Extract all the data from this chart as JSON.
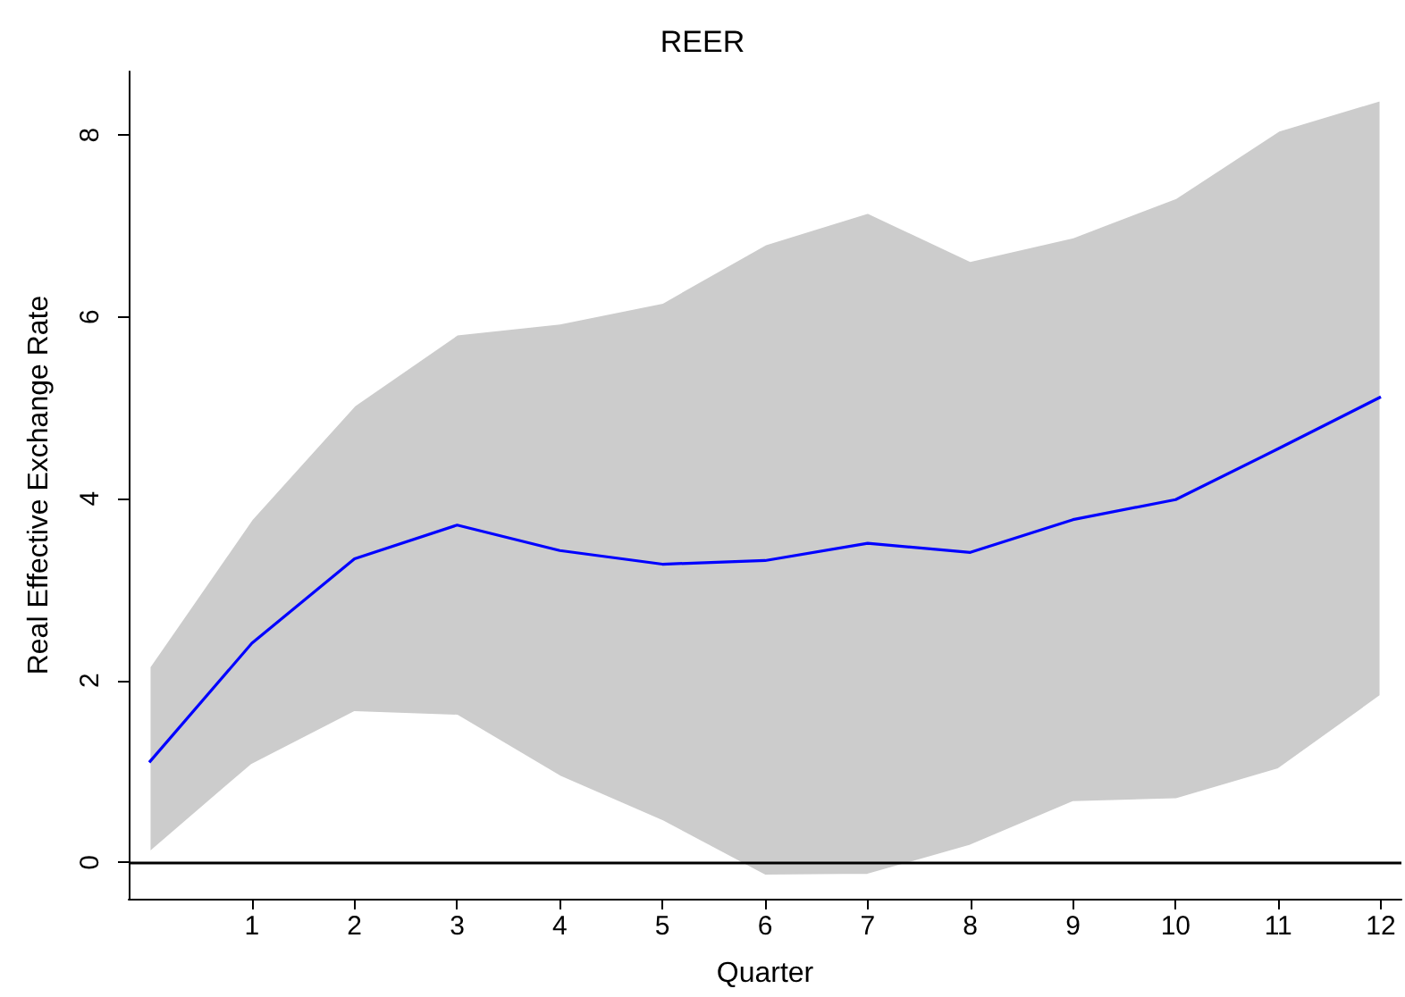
{
  "chart_data": {
    "type": "line",
    "title": "REER",
    "xlabel": "Quarter",
    "ylabel": "Real Effective Exchange Rate",
    "x": [
      0,
      1,
      2,
      3,
      4,
      5,
      6,
      7,
      8,
      9,
      10,
      11,
      12
    ],
    "series": [
      {
        "color": "#0000ff",
        "values": [
          1.1,
          2.41,
          3.34,
          3.71,
          3.43,
          3.28,
          3.32,
          3.51,
          3.41,
          3.77,
          3.99,
          4.55,
          5.12
        ],
        "lower": [
          0.1,
          1.07,
          1.65,
          1.61,
          0.94,
          0.45,
          -0.15,
          -0.14,
          0.18,
          0.66,
          0.69,
          1.02,
          1.83
        ],
        "upper": [
          2.15,
          3.78,
          5.03,
          5.81,
          5.93,
          6.16,
          6.8,
          7.15,
          6.62,
          6.88,
          7.31,
          8.05,
          8.39
        ]
      }
    ],
    "xlim": [
      -0.2,
      12.2
    ],
    "xticks": [
      1,
      2,
      3,
      4,
      5,
      6,
      7,
      8,
      9,
      10,
      11,
      12
    ],
    "ylim": [
      -0.4,
      8.7
    ],
    "yticks": [
      0,
      2,
      4,
      6,
      8
    ],
    "ref_lines": [
      {
        "axis": "y",
        "value": 0,
        "color": "#000000"
      }
    ],
    "grid": false
  }
}
